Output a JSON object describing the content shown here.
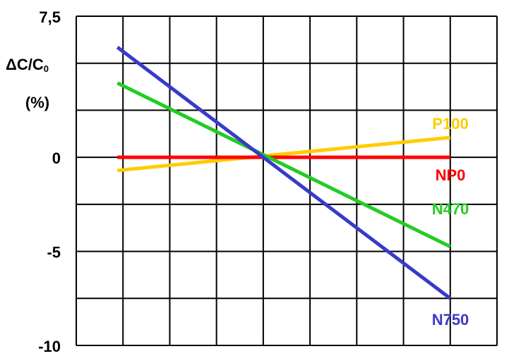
{
  "chart_data": {
    "type": "line",
    "y_label": {
      "main": "ΔC/C",
      "sub": "0",
      "unit": "(%)"
    },
    "x": [
      0.88,
      8
    ],
    "xlim": [
      0,
      9
    ],
    "xgrid": [
      0,
      1,
      2,
      3,
      4,
      5,
      6,
      7,
      8,
      9
    ],
    "ylim": [
      -10,
      7.5
    ],
    "yticks": [
      {
        "value": 7.5,
        "label": "7,5"
      },
      0,
      -5,
      -10
    ],
    "ygrid": [
      7.5,
      5,
      2.5,
      0,
      -2.5,
      -5,
      -7.5,
      -10
    ],
    "series": [
      {
        "name": "P100",
        "color": "#ffcc00",
        "values": [
          -0.7,
          1.05
        ]
      },
      {
        "name": "NP0",
        "color": "#ff0000",
        "values": [
          0,
          0
        ]
      },
      {
        "name": "N470",
        "color": "#22cc22",
        "values": [
          3.95,
          -4.75
        ]
      },
      {
        "name": "N750",
        "color": "#3a3ac8",
        "values": [
          5.85,
          -7.5
        ]
      }
    ]
  }
}
